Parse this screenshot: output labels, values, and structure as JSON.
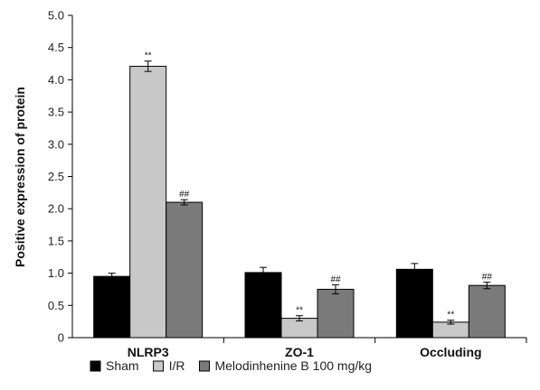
{
  "chart_data": {
    "type": "bar",
    "categories": [
      "NLRP3",
      "ZO-1",
      "Occluding"
    ],
    "ylabel": "Positive expression of protein",
    "ylim": [
      0,
      5.0
    ],
    "yticks": [
      "0",
      "0.5",
      "1.0",
      "1.5",
      "2.0",
      "2.5",
      "3.0",
      "3.5",
      "4.0",
      "4.5",
      "5.0"
    ],
    "legend_position": "bottom",
    "series": [
      {
        "name": "Sham",
        "color": "#000000",
        "values": [
          0.95,
          1.01,
          1.06
        ],
        "errors": [
          0.05,
          0.08,
          0.09
        ],
        "annotations": [
          "",
          "",
          ""
        ]
      },
      {
        "name": "I/R",
        "color": "#c8c8c8",
        "values": [
          4.21,
          0.3,
          0.24
        ],
        "errors": [
          0.08,
          0.04,
          0.03
        ],
        "annotations": [
          "**",
          "**",
          "**"
        ]
      },
      {
        "name": "Melodinhenine B 100 mg/kg",
        "color": "#7a7a7a",
        "values": [
          2.1,
          0.75,
          0.81
        ],
        "errors": [
          0.04,
          0.07,
          0.05
        ],
        "annotations": [
          "##",
          "##",
          "##"
        ]
      }
    ]
  }
}
